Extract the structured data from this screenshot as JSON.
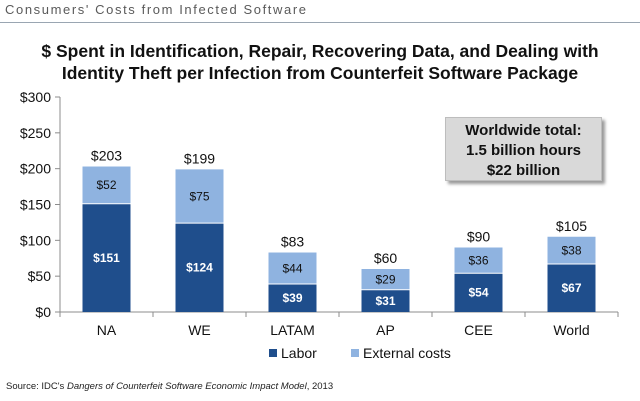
{
  "header": {
    "slide_title": "Consumers' Costs from Infected Software"
  },
  "chart_data": {
    "type": "bar",
    "stacked": true,
    "title": "$ Spent in Identification, Repair, Recovering Data, and Dealing with Identity Theft per Infection from Counterfeit Software Package",
    "title_line1": "$ Spent in Identification, Repair, Recovering Data, and Dealing with",
    "title_line2": "Identity Theft per Infection from Counterfeit Software Package",
    "xlabel": "",
    "ylabel": "",
    "ylim": [
      0,
      300
    ],
    "y_ticks": [
      0,
      50,
      100,
      150,
      200,
      250,
      300
    ],
    "y_tick_labels": [
      "$0",
      "$50",
      "$100",
      "$150",
      "$200",
      "$250",
      "$300"
    ],
    "categories": [
      "NA",
      "WE",
      "LATAM",
      "AP",
      "CEE",
      "World"
    ],
    "series": [
      {
        "name": "Labor",
        "color": "#1f4e8c",
        "values": [
          151,
          124,
          39,
          31,
          54,
          67
        ],
        "labels": [
          "$151",
          "$124",
          "$39",
          "$31",
          "$54",
          "$67"
        ]
      },
      {
        "name": "External costs",
        "color": "#8fb3e0",
        "values": [
          52,
          75,
          44,
          29,
          36,
          38
        ],
        "labels": [
          "$52",
          "$75",
          "$44",
          "$29",
          "$36",
          "$38"
        ]
      }
    ],
    "totals": [
      203,
      199,
      83,
      60,
      90,
      105
    ],
    "total_labels": [
      "$203",
      "$199",
      "$83",
      "$60",
      "$90",
      "$105"
    ],
    "legend_position": "bottom",
    "grid": false
  },
  "callout": {
    "line1": "Worldwide total:",
    "line2": "1.5 billion hours",
    "line3": "$22 billion"
  },
  "source": {
    "prefix": "Source: IDC's ",
    "title": "Dangers of Counterfeit Software Economic Impact Model",
    "suffix": ", 2013"
  }
}
